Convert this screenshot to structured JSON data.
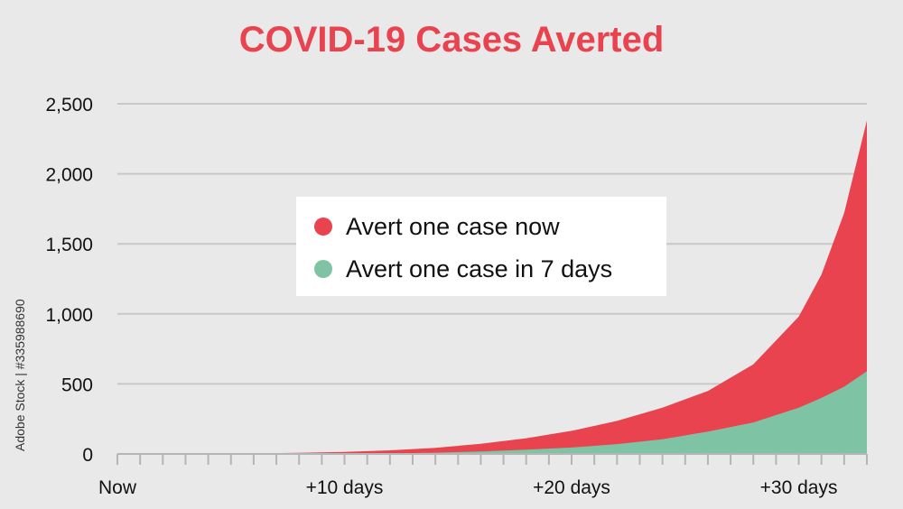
{
  "colors": {
    "background": "#e9e9e9",
    "title": "#e8434f",
    "series_now": "#e8434f",
    "series_7days": "#7ec4a4",
    "grid": "#c8c8c8",
    "axis": "#b5b5b5"
  },
  "credit": "Adobe Stock | #335988690",
  "chart_data": {
    "type": "area",
    "title": "COVID-19 Cases Averted",
    "xlabel": "",
    "ylabel": "",
    "xlim": [
      0,
      33
    ],
    "ylim": [
      0,
      2500
    ],
    "grid": true,
    "legend_position": "center",
    "x_ticks": [
      {
        "value": 0,
        "label": "Now"
      },
      {
        "value": 10,
        "label": "+10 days"
      },
      {
        "value": 20,
        "label": "+20 days"
      },
      {
        "value": 30,
        "label": "+30 days"
      }
    ],
    "y_ticks": [
      {
        "value": 0,
        "label": "0"
      },
      {
        "value": 500,
        "label": "500"
      },
      {
        "value": 1000,
        "label": "1,000"
      },
      {
        "value": 1500,
        "label": "1,500"
      },
      {
        "value": 2000,
        "label": "2,000"
      },
      {
        "value": 2500,
        "label": "2,500"
      }
    ],
    "x": [
      0,
      2,
      4,
      6,
      8,
      10,
      12,
      14,
      16,
      18,
      20,
      22,
      24,
      26,
      28,
      30,
      31,
      32,
      33
    ],
    "series": [
      {
        "name": "Avert one case now",
        "values": [
          0,
          1,
          2,
          4,
          8,
          15,
          26,
          44,
          72,
          112,
          165,
          236,
          330,
          450,
          640,
          980,
          1280,
          1720,
          2380
        ]
      },
      {
        "name": "Avert one case in 7 days",
        "values": [
          0,
          0,
          0,
          0,
          0,
          1,
          4,
          9,
          18,
          30,
          46,
          70,
          105,
          160,
          225,
          330,
          400,
          480,
          590
        ]
      }
    ]
  }
}
